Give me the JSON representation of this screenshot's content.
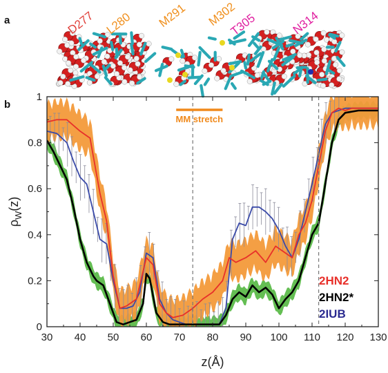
{
  "panel_a": {
    "label": "a",
    "residues": [
      {
        "text": "D277",
        "color": "#e0403a"
      },
      {
        "text": "L280",
        "color": "#f0901e"
      },
      {
        "text": "M291",
        "color": "#f0901e"
      },
      {
        "text": "M302",
        "color": "#f0901e"
      },
      {
        "text": "T305",
        "color": "#e020a0"
      },
      {
        "text": "N314",
        "color": "#e020a0"
      }
    ]
  },
  "panel_b": {
    "label": "b",
    "annotation": {
      "text": "MM stretch",
      "color": "#f08a1c",
      "x_range": [
        69,
        83
      ]
    },
    "dashed_lines": [
      74,
      112
    ],
    "legend": [
      {
        "text": "2HN2",
        "color": "#e8302a"
      },
      {
        "text": "2HN2*",
        "color": "#000000"
      },
      {
        "text": "2IUB",
        "color": "#2a2a90"
      }
    ]
  },
  "chart_data": {
    "type": "line",
    "xlabel": "z(Å)",
    "ylabel": "ρ_W(z)",
    "ylabel_main": "ρ",
    "ylabel_sub": "W",
    "ylabel_rest": "(z)",
    "xlim": [
      30,
      130
    ],
    "ylim": [
      0,
      1
    ],
    "xticks": [
      30,
      40,
      50,
      60,
      70,
      80,
      90,
      100,
      110,
      120,
      130
    ],
    "yticks": [
      0,
      0.2,
      0.4,
      0.6,
      0.8,
      1
    ],
    "ytick_labels": [
      "0",
      "0.2",
      "0.4",
      "0.6",
      "0.8",
      "1"
    ],
    "series": [
      {
        "name": "2HN2",
        "color": "#e8302a",
        "band_color": "#f39a3a",
        "band": 0.07,
        "x": [
          30,
          33,
          36,
          40,
          43,
          46,
          48,
          50,
          52,
          54,
          57,
          59,
          60,
          62,
          64,
          66,
          68,
          71,
          74,
          77,
          80,
          83,
          85,
          87,
          90,
          93,
          96,
          99,
          102,
          104,
          106,
          108,
          110,
          112,
          114,
          116,
          118,
          120,
          122,
          125,
          128,
          130
        ],
        "y": [
          0.89,
          0.9,
          0.9,
          0.85,
          0.82,
          0.58,
          0.46,
          0.22,
          0.08,
          0.09,
          0.12,
          0.24,
          0.3,
          0.27,
          0.1,
          0.06,
          0.04,
          0.05,
          0.08,
          0.12,
          0.15,
          0.2,
          0.3,
          0.28,
          0.3,
          0.33,
          0.28,
          0.35,
          0.32,
          0.3,
          0.4,
          0.45,
          0.55,
          0.7,
          0.85,
          0.93,
          0.95,
          0.94,
          0.95,
          0.95,
          0.95,
          0.95
        ]
      },
      {
        "name": "2HN2*",
        "color": "#000000",
        "band_color": "#5cba4a",
        "band": 0.03,
        "x": [
          30,
          32,
          34,
          36,
          38,
          40,
          42,
          44,
          45,
          47,
          49,
          51,
          53,
          55,
          57,
          59,
          60,
          61,
          63,
          65,
          67,
          70,
          74,
          78,
          82,
          84,
          86,
          88,
          90,
          92,
          94,
          96,
          98,
          100,
          102,
          104,
          106,
          108,
          110,
          112,
          114,
          116,
          118,
          120,
          124,
          128,
          130
        ],
        "y": [
          0.81,
          0.76,
          0.7,
          0.64,
          0.52,
          0.38,
          0.28,
          0.22,
          0.2,
          0.18,
          0.1,
          0.02,
          0.01,
          0.02,
          0.03,
          0.1,
          0.23,
          0.21,
          0.06,
          0.02,
          0.01,
          0.01,
          0.01,
          0.01,
          0.01,
          0.05,
          0.12,
          0.15,
          0.13,
          0.18,
          0.15,
          0.17,
          0.14,
          0.08,
          0.12,
          0.15,
          0.2,
          0.3,
          0.4,
          0.45,
          0.62,
          0.8,
          0.9,
          0.93,
          0.94,
          0.94,
          0.94
        ]
      },
      {
        "name": "2IUB",
        "color": "#3a4aa8",
        "band_color": "#9a9aa8",
        "band": 0.05,
        "x": [
          30,
          33,
          36,
          38,
          40,
          42,
          44,
          46,
          48,
          50,
          52,
          54,
          56,
          58,
          60,
          62,
          64,
          66,
          68,
          70,
          72,
          76,
          80,
          82,
          84,
          86,
          88,
          90,
          92,
          94,
          96,
          98,
          100,
          102,
          104,
          106,
          108,
          110,
          112,
          114,
          116,
          118,
          120,
          124,
          128,
          130
        ],
        "y": [
          0.85,
          0.84,
          0.8,
          0.72,
          0.65,
          0.62,
          0.5,
          0.38,
          0.36,
          0.2,
          0.08,
          0.08,
          0.09,
          0.15,
          0.32,
          0.3,
          0.12,
          0.06,
          0.03,
          0.02,
          0.01,
          0.01,
          0.01,
          0.01,
          0.08,
          0.38,
          0.45,
          0.44,
          0.52,
          0.52,
          0.5,
          0.47,
          0.42,
          0.35,
          0.3,
          0.38,
          0.5,
          0.62,
          0.75,
          0.88,
          0.93,
          0.94,
          0.95,
          0.95,
          0.95,
          0.95
        ]
      }
    ]
  }
}
